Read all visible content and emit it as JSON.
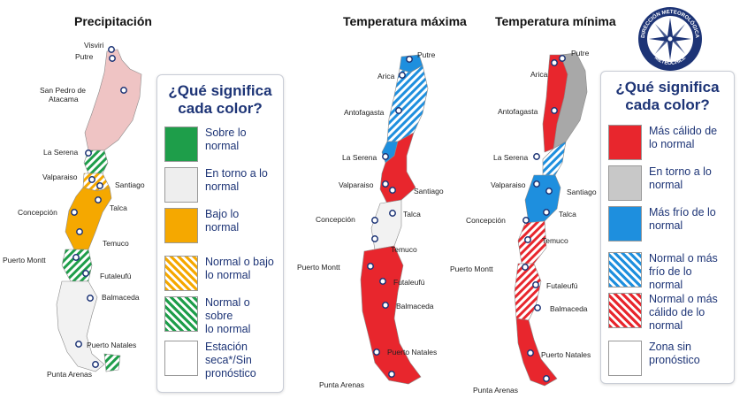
{
  "titles": {
    "precip": "Precipitación",
    "tmax": "Temperatura máxima",
    "tmin": "Temperatura mínima"
  },
  "logo": {
    "ring_text_top": "DIRECCIÓN METEOROLÓGICA",
    "ring_text_bottom": "METEOCHILE"
  },
  "legend_heading": {
    "line1": "¿Qué significa",
    "line2": "cada color?"
  },
  "precip_legend": [
    {
      "line1": "Sobre lo",
      "line2": "normal",
      "color": "#1e9e4a",
      "pattern": "solid"
    },
    {
      "line1": "En torno a lo",
      "line2": "normal",
      "color": "#eeeeee",
      "pattern": "solid"
    },
    {
      "line1": "Bajo lo",
      "line2": "normal",
      "color": "#f5a800",
      "pattern": "solid"
    },
    {
      "line1": "Normal o bajo",
      "line2": "lo normal",
      "color": "#f5a800",
      "pattern": "hatch"
    },
    {
      "line1": "Normal o sobre",
      "line2": "lo normal",
      "color": "#1e9e4a",
      "pattern": "hatch"
    },
    {
      "line1": "Estación",
      "line2": "seca*/Sin",
      "line3": "pronóstico",
      "color": "#ffffff",
      "pattern": "solid"
    }
  ],
  "temp_legend": [
    {
      "line1": "Más cálido de",
      "line2": "lo normal",
      "color": "#e8262d",
      "pattern": "solid"
    },
    {
      "line1": "En torno a lo",
      "line2": "normal",
      "color": "#c8c8c8",
      "pattern": "solid"
    },
    {
      "line1": "Más frío de lo",
      "line2": "normal",
      "color": "#1e8fde",
      "pattern": "solid"
    },
    {
      "line1": "Normal o más",
      "line2": "frío de lo normal",
      "color": "#1e8fde",
      "pattern": "hatch"
    },
    {
      "line1": "Normal o más",
      "line2": "cálido de lo",
      "line3": "normal",
      "color": "#e8262d",
      "pattern": "hatch"
    },
    {
      "line1": "Zona sin",
      "line2": "pronóstico",
      "color": "#ffffff",
      "pattern": "solid"
    }
  ],
  "cities": {
    "visviri": "Visviri",
    "putre": "Putre",
    "san_pedro_1": "San Pedro de",
    "san_pedro_2": "Atacama",
    "arica": "Arica",
    "antofagasta": "Antofagasta",
    "la_serena": "La Serena",
    "valparaiso": "Valparaiso",
    "santiago": "Santiago",
    "concepcion": "Concepción",
    "talca": "Talca",
    "temuco": "Temuco",
    "puerto_montt": "Puerto Montt",
    "futaleufu": "Futaleufú",
    "balmaceda": "Balmaceda",
    "puerto_natales": "Puerto Natales",
    "punta_arenas": "Punta Arenas"
  },
  "colors": {
    "pink": "#efc4c4",
    "green": "#1e9e4a",
    "orange": "#f5a800",
    "red": "#e8262d",
    "blue": "#1e8fde",
    "gray": "#a8a8a8",
    "legend_text": "#1d3476"
  }
}
